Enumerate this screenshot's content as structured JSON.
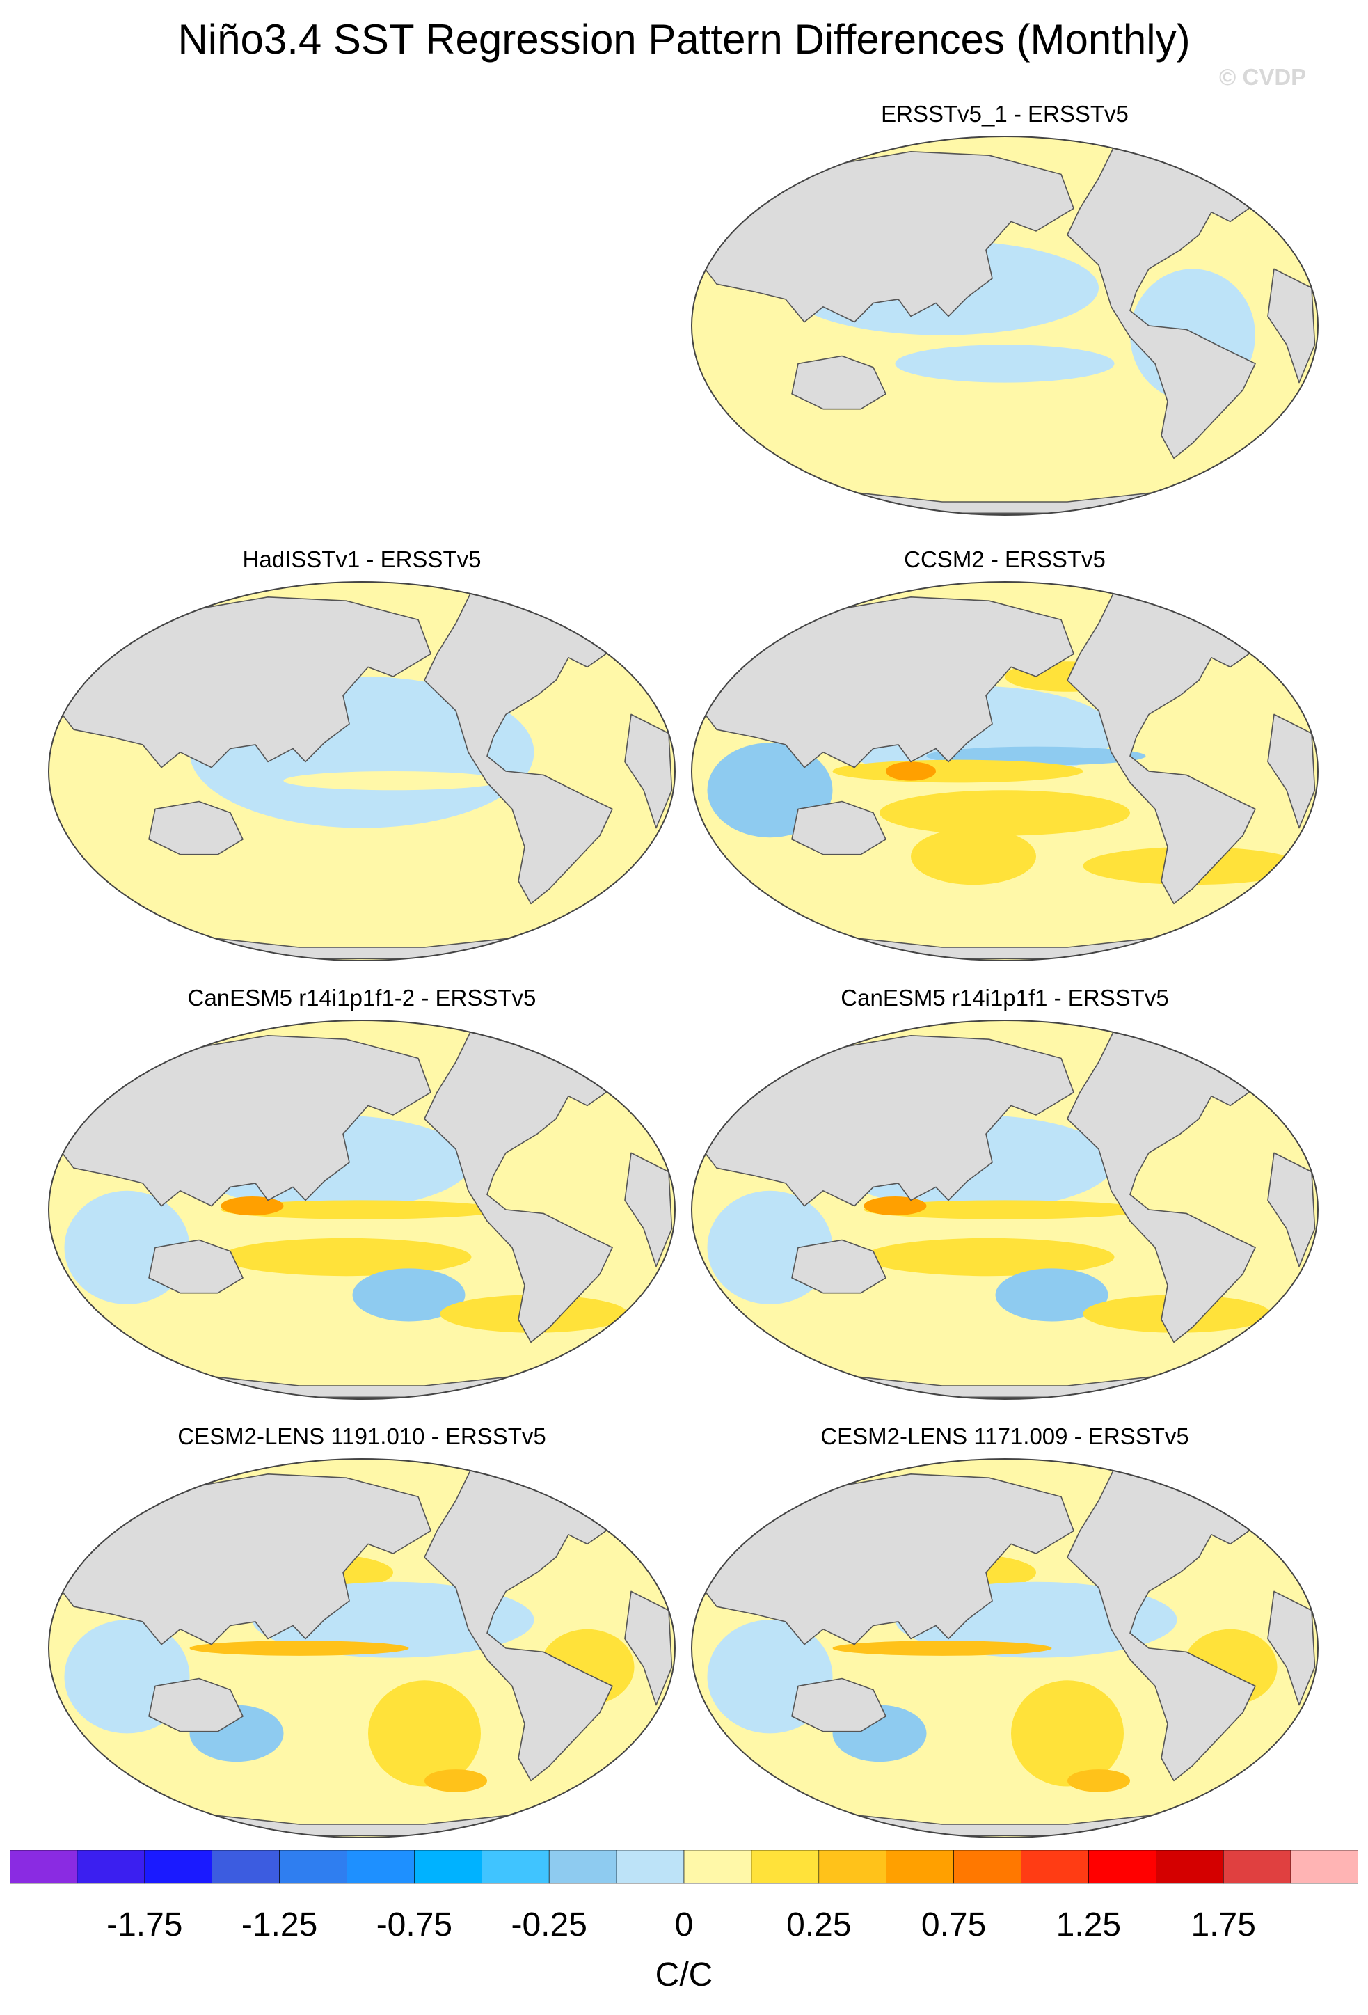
{
  "title": "Niño3.4 SST Regression Pattern Differences (Monthly)",
  "credit": "© CVDP",
  "panels": [
    {
      "id": "p1",
      "title": "ERSSTv5_1 - ERSSTv5"
    },
    {
      "id": "p2",
      "title": "HadISSTv1 - ERSSTv5"
    },
    {
      "id": "p3",
      "title": "CCSM2 - ERSSTv5"
    },
    {
      "id": "p4",
      "title": "CanESM5 r14i1p1f1-2 - ERSSTv5"
    },
    {
      "id": "p5",
      "title": "CanESM5 r14i1p1f1 - ERSSTv5"
    },
    {
      "id": "p6",
      "title": "CESM2-LENS 1191.010 - ERSSTv5"
    },
    {
      "id": "p7",
      "title": "CESM2-LENS 1171.009 - ERSSTv5"
    }
  ],
  "colorbar": {
    "colors": [
      "#8a2be2",
      "#3b1ff0",
      "#1a1aff",
      "#3c5ce0",
      "#2f7ef0",
      "#1e90ff",
      "#00b2ff",
      "#40c4ff",
      "#8ecbf0",
      "#bde3f8",
      "#fff8a8",
      "#ffe23a",
      "#ffc21a",
      "#ffa000",
      "#ff7800",
      "#ff3c14",
      "#ff0000",
      "#d40000",
      "#e04040",
      "#ffb4b4"
    ],
    "tick_labels": [
      "-1.75",
      "-1.25",
      "-0.75",
      "-0.25",
      "0",
      "0.25",
      "0.75",
      "1.25",
      "1.75"
    ],
    "units": "C/C"
  }
}
